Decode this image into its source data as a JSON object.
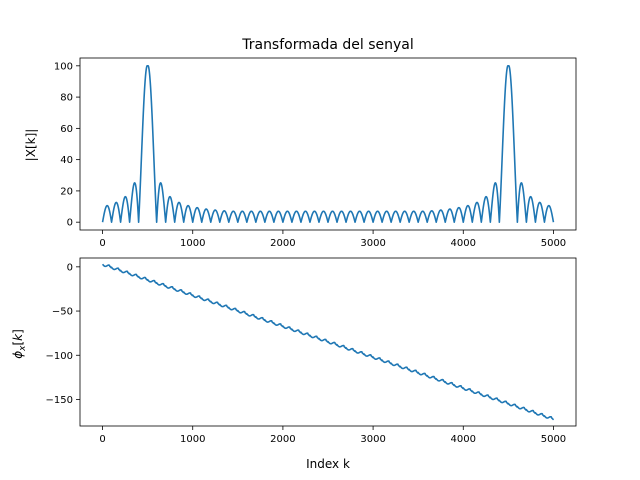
{
  "chart_data": [
    {
      "type": "line",
      "title": "Transformada del senyal",
      "xlabel": "",
      "ylabel": "|X[k]|",
      "xlim": [
        -250,
        5250
      ],
      "ylim": [
        -5,
        105
      ],
      "xticks": [
        0,
        1000,
        2000,
        3000,
        4000,
        5000
      ],
      "yticks": [
        0,
        20,
        40,
        60,
        80,
        100
      ],
      "xtick_labels": [
        "0",
        "1000",
        "2000",
        "3000",
        "4000",
        "5000"
      ],
      "ytick_labels": [
        "0",
        "20",
        "40",
        "60",
        "80",
        "100"
      ],
      "grid": false,
      "series": [
        {
          "color": "#1f77b4",
          "model": {
            "kind": "dirichlet-magnitude",
            "N": 5000,
            "peak_k": [
              500,
              4500
            ],
            "main_lobe_halfwidth": 100,
            "peak_value": 100
          }
        }
      ]
    },
    {
      "type": "line",
      "title": "",
      "xlabel": "Index k",
      "ylabel": "ϕ_x[k]",
      "xlim": [
        -250,
        5250
      ],
      "ylim": [
        -180,
        10
      ],
      "xticks": [
        0,
        1000,
        2000,
        3000,
        4000,
        5000
      ],
      "yticks": [
        0,
        -50,
        -100,
        -150
      ],
      "xtick_labels": [
        "0",
        "1000",
        "2000",
        "3000",
        "4000",
        "5000"
      ],
      "ytick_labels": [
        "0",
        "−50",
        "−100",
        "−150"
      ],
      "grid": false,
      "series": [
        {
          "color": "#1f77b4",
          "model": {
            "kind": "staircase-linear-phase",
            "x_start": 0,
            "x_end": 5000,
            "y_start": 3,
            "y_end": -172,
            "step_period": 100,
            "step_height": 2.5
          }
        }
      ]
    }
  ]
}
